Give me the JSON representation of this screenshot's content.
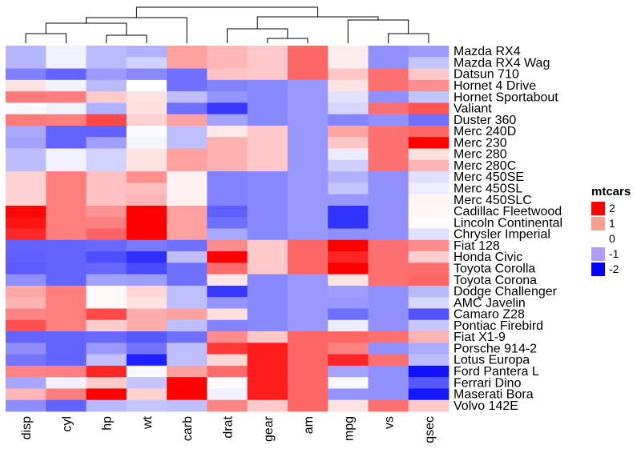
{
  "chart_data": {
    "type": "heatmap",
    "legend": {
      "title": "mtcars",
      "breaks": [
        "2",
        "1",
        "0",
        "-1",
        "-2"
      ],
      "colors": {
        "high": "#ff0000",
        "mid": "#ffffff",
        "low": "#0000ff"
      },
      "range": [
        -2,
        2
      ],
      "placement": "right"
    },
    "columns": [
      "disp",
      "cyl",
      "hp",
      "wt",
      "carb",
      "drat",
      "gear",
      "am",
      "mpg",
      "vs",
      "qsec"
    ],
    "rows": [
      "Mazda RX4",
      "Mazda RX4 Wag",
      "Datsun 710",
      "Hornet 4 Drive",
      "Hornet Sportabout",
      "Valiant",
      "Duster 360",
      "Merc 240D",
      "Merc 230",
      "Merc 280",
      "Merc 280C",
      "Merc 450SE",
      "Merc 450SL",
      "Merc 450SLC",
      "Cadillac Fleetwood",
      "Lincoln Continental",
      "Chrysler Imperial",
      "Fiat 128",
      "Honda Civic",
      "Toyota Corolla",
      "Toyota Corona",
      "Dodge Challenger",
      "AMC Javelin",
      "Camaro Z28",
      "Pontiac Firebird",
      "Fiat X1-9",
      "Porsche 914-2",
      "Lotus Europa",
      "Ford Pantera L",
      "Ferrari Dino",
      "Maserati Bora",
      "Volvo 142E"
    ],
    "values": [
      [
        -0.57,
        -0.1,
        -0.54,
        -0.61,
        0.74,
        0.57,
        0.42,
        1.19,
        0.15,
        -0.87,
        -0.78
      ],
      [
        -0.57,
        -0.1,
        -0.54,
        -0.35,
        0.74,
        0.57,
        0.42,
        1.19,
        0.15,
        -0.87,
        -0.46
      ],
      [
        -0.99,
        -1.22,
        -0.78,
        -0.92,
        -1.12,
        0.47,
        0.42,
        1.19,
        0.45,
        1.12,
        0.43
      ],
      [
        0.22,
        -0.1,
        -0.54,
        -0.0,
        -1.12,
        -0.97,
        -0.93,
        -0.81,
        0.22,
        1.12,
        0.89
      ],
      [
        1.04,
        1.01,
        0.41,
        0.23,
        -0.5,
        -0.84,
        -0.93,
        -0.81,
        -0.23,
        -0.87,
        -0.46
      ],
      [
        -0.05,
        -0.1,
        -0.61,
        0.25,
        -1.12,
        -1.56,
        -0.93,
        -0.81,
        -0.33,
        1.12,
        1.33
      ],
      [
        1.04,
        1.01,
        1.43,
        0.36,
        0.74,
        -0.72,
        -0.93,
        -0.81,
        -0.96,
        -0.87,
        -1.12
      ],
      [
        -0.68,
        -1.22,
        -1.24,
        -0.03,
        -0.5,
        0.18,
        0.42,
        -0.81,
        0.72,
        1.12,
        1.2
      ],
      [
        -0.73,
        -1.22,
        -0.75,
        -0.07,
        -0.5,
        0.61,
        0.42,
        -0.81,
        0.45,
        1.12,
        2.83
      ],
      [
        -0.51,
        -0.1,
        -0.35,
        0.23,
        0.74,
        0.61,
        0.42,
        -0.81,
        -0.15,
        1.12,
        0.25
      ],
      [
        -0.51,
        -0.1,
        -0.35,
        0.23,
        0.74,
        0.61,
        0.42,
        -0.81,
        -0.38,
        1.12,
        0.59
      ],
      [
        0.36,
        1.01,
        0.49,
        0.87,
        0.11,
        -0.98,
        -0.93,
        -0.81,
        -0.61,
        -0.87,
        -0.25
      ],
      [
        0.36,
        1.01,
        0.49,
        0.52,
        0.11,
        -0.98,
        -0.93,
        -0.81,
        -0.46,
        -0.87,
        -0.14
      ],
      [
        0.36,
        1.01,
        0.49,
        0.58,
        0.11,
        -0.98,
        -0.93,
        -0.81,
        -0.81,
        -0.87,
        0.08
      ],
      [
        1.95,
        1.01,
        0.85,
        2.08,
        0.74,
        -1.25,
        -0.93,
        -0.81,
        -1.61,
        -0.87,
        0.07
      ],
      [
        1.85,
        1.01,
        1.0,
        2.26,
        0.74,
        -1.12,
        -0.93,
        -0.81,
        -1.61,
        -0.87,
        -0.02
      ],
      [
        1.69,
        1.01,
        1.22,
        2.17,
        0.74,
        -0.69,
        -0.93,
        -0.81,
        -0.89,
        -0.87,
        -0.24
      ],
      [
        -1.23,
        -1.22,
        -1.18,
        -1.04,
        -1.12,
        0.9,
        0.42,
        1.19,
        2.04,
        1.12,
        0.91
      ],
      [
        -1.25,
        -1.22,
        -1.38,
        -1.64,
        -0.5,
        2.49,
        0.42,
        1.19,
        1.71,
        1.12,
        0.38
      ],
      [
        -1.29,
        -1.22,
        -1.19,
        -1.42,
        -1.12,
        1.17,
        0.42,
        1.19,
        2.29,
        1.12,
        1.15
      ],
      [
        -0.89,
        -1.22,
        -0.74,
        -0.77,
        -1.12,
        0.19,
        -0.93,
        -0.81,
        0.23,
        1.12,
        1.21
      ],
      [
        0.7,
        1.01,
        0.05,
        0.31,
        -0.5,
        -1.56,
        -0.93,
        -0.81,
        -0.76,
        -0.87,
        -0.55
      ],
      [
        0.59,
        1.01,
        0.05,
        0.22,
        -0.5,
        -0.84,
        -0.93,
        -0.81,
        -0.81,
        -0.87,
        -0.31
      ],
      [
        0.96,
        1.01,
        1.43,
        0.64,
        0.74,
        0.25,
        -0.93,
        -0.81,
        -1.13,
        -0.87,
        -1.36
      ],
      [
        1.37,
        1.01,
        0.41,
        0.64,
        -0.5,
        -0.97,
        -0.93,
        -0.81,
        -0.15,
        -0.87,
        -0.45
      ],
      [
        -1.22,
        -1.22,
        -1.18,
        -1.31,
        -1.12,
        0.9,
        0.42,
        1.19,
        1.2,
        1.12,
        0.59
      ],
      [
        -0.89,
        -1.22,
        -0.81,
        -1.1,
        -0.5,
        1.56,
        1.78,
        1.19,
        0.98,
        -0.87,
        -0.64
      ],
      [
        -1.09,
        -1.22,
        -0.49,
        -1.74,
        -0.5,
        0.32,
        1.78,
        1.19,
        1.71,
        1.12,
        -0.53
      ],
      [
        0.97,
        1.01,
        1.71,
        -0.05,
        0.74,
        1.17,
        1.78,
        1.19,
        -0.71,
        -0.87,
        -1.87
      ],
      [
        -0.69,
        -0.1,
        0.41,
        -0.46,
        1.98,
        0.04,
        1.78,
        1.19,
        -0.06,
        -0.87,
        -1.31
      ],
      [
        0.57,
        1.01,
        2.75,
        0.36,
        3.21,
        -0.11,
        1.78,
        1.19,
        -0.84,
        -0.87,
        -1.82
      ],
      [
        -0.89,
        -1.22,
        -0.55,
        -0.45,
        -0.5,
        0.96,
        0.42,
        1.19,
        0.22,
        1.12,
        0.42
      ]
    ],
    "dendrogram": "complete-linkage column clustering (disp, cyl, hp, wt, carb | drat, gear, am, mpg, vs, qsec)"
  }
}
